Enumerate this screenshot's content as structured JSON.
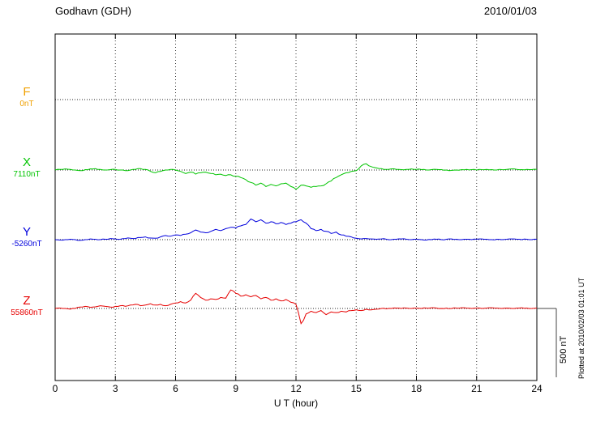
{
  "header": {
    "station": "Godhavn (GDH)",
    "date": "2010/01/03"
  },
  "axis": {
    "x_title": "U T (hour)",
    "x_ticks": [
      0,
      3,
      6,
      9,
      12,
      15,
      18,
      21,
      24
    ],
    "x_range": [
      0,
      24
    ]
  },
  "scalebar": {
    "label": "500 nT",
    "nT": 500
  },
  "footer": {
    "note": "Plotted at 2010/02/03 01:01 UT"
  },
  "chart_data": {
    "type": "line",
    "title": "Godhavn (GDH) magnetogram",
    "date": "2010/01/03",
    "xlabel": "U T (hour)",
    "x_start_hour": 0,
    "x_step_hours": 0.25,
    "x_end_hour": 24,
    "x_ticks": [
      0,
      3,
      6,
      9,
      12,
      15,
      18,
      21,
      24
    ],
    "scale_bar_nT": 500,
    "grid": "dotted",
    "traces": [
      {
        "name": "F",
        "label": "F",
        "baseline_label": "0nT",
        "color": "#f0a000",
        "values": []
      },
      {
        "name": "X",
        "label": "X",
        "baseline_label": "7110nT",
        "color": "#00c400",
        "values": [
          0,
          5,
          8,
          5,
          0,
          -5,
          3,
          8,
          10,
          5,
          0,
          3,
          5,
          0,
          -5,
          0,
          5,
          10,
          5,
          -10,
          -20,
          -10,
          0,
          5,
          0,
          -10,
          -25,
          -15,
          -30,
          -20,
          -15,
          -25,
          -35,
          -30,
          -40,
          -35,
          -45,
          -55,
          -70,
          -90,
          -110,
          -95,
          -120,
          -105,
          -115,
          -100,
          -95,
          -120,
          -140,
          -110,
          -115,
          -125,
          -120,
          -115,
          -100,
          -80,
          -55,
          -35,
          -20,
          -10,
          -5,
          30,
          45,
          25,
          15,
          10,
          5,
          8,
          5,
          3,
          5,
          8,
          5,
          3,
          0,
          3,
          5,
          3,
          0,
          -3,
          0,
          3,
          5,
          3,
          0,
          3,
          5,
          3,
          0,
          3,
          5,
          8,
          5,
          3,
          5,
          3,
          5
        ]
      },
      {
        "name": "Y",
        "label": "Y",
        "baseline_label": "-5260nT",
        "color": "#0000dd",
        "values": [
          0,
          -3,
          0,
          3,
          0,
          -5,
          0,
          5,
          3,
          0,
          3,
          8,
          5,
          3,
          8,
          10,
          8,
          15,
          20,
          12,
          10,
          20,
          30,
          25,
          35,
          30,
          40,
          50,
          70,
          55,
          50,
          60,
          75,
          65,
          80,
          90,
          85,
          100,
          110,
          150,
          130,
          145,
          120,
          130,
          115,
          125,
          110,
          120,
          130,
          145,
          120,
          80,
          65,
          75,
          60,
          45,
          55,
          35,
          25,
          20,
          10,
          5,
          8,
          5,
          3,
          5,
          3,
          0,
          3,
          5,
          3,
          0,
          3,
          0,
          -3,
          0,
          3,
          0,
          3,
          5,
          3,
          0,
          3,
          0,
          3,
          5,
          3,
          0,
          3,
          0,
          3,
          5,
          3,
          0,
          3,
          0,
          3
        ]
      },
      {
        "name": "Z",
        "label": "Z",
        "baseline_label": "55860nT",
        "color": "#e60000",
        "values": [
          0,
          3,
          0,
          -5,
          0,
          10,
          15,
          8,
          12,
          20,
          15,
          10,
          15,
          20,
          15,
          25,
          30,
          20,
          25,
          35,
          25,
          30,
          20,
          30,
          40,
          50,
          40,
          60,
          110,
          80,
          60,
          70,
          65,
          80,
          75,
          135,
          110,
          90,
          100,
          85,
          95,
          70,
          80,
          60,
          70,
          55,
          65,
          45,
          30,
          -110,
          -40,
          -20,
          -30,
          -15,
          -45,
          -25,
          -30,
          -20,
          -25,
          -15,
          -10,
          -15,
          -5,
          -10,
          -5,
          0,
          -3,
          0,
          3,
          0,
          3,
          0,
          3,
          0,
          3,
          5,
          3,
          0,
          3,
          0,
          3,
          5,
          3,
          0,
          3,
          0,
          3,
          5,
          3,
          0,
          3,
          0,
          3,
          5,
          3,
          0,
          3
        ]
      }
    ]
  }
}
